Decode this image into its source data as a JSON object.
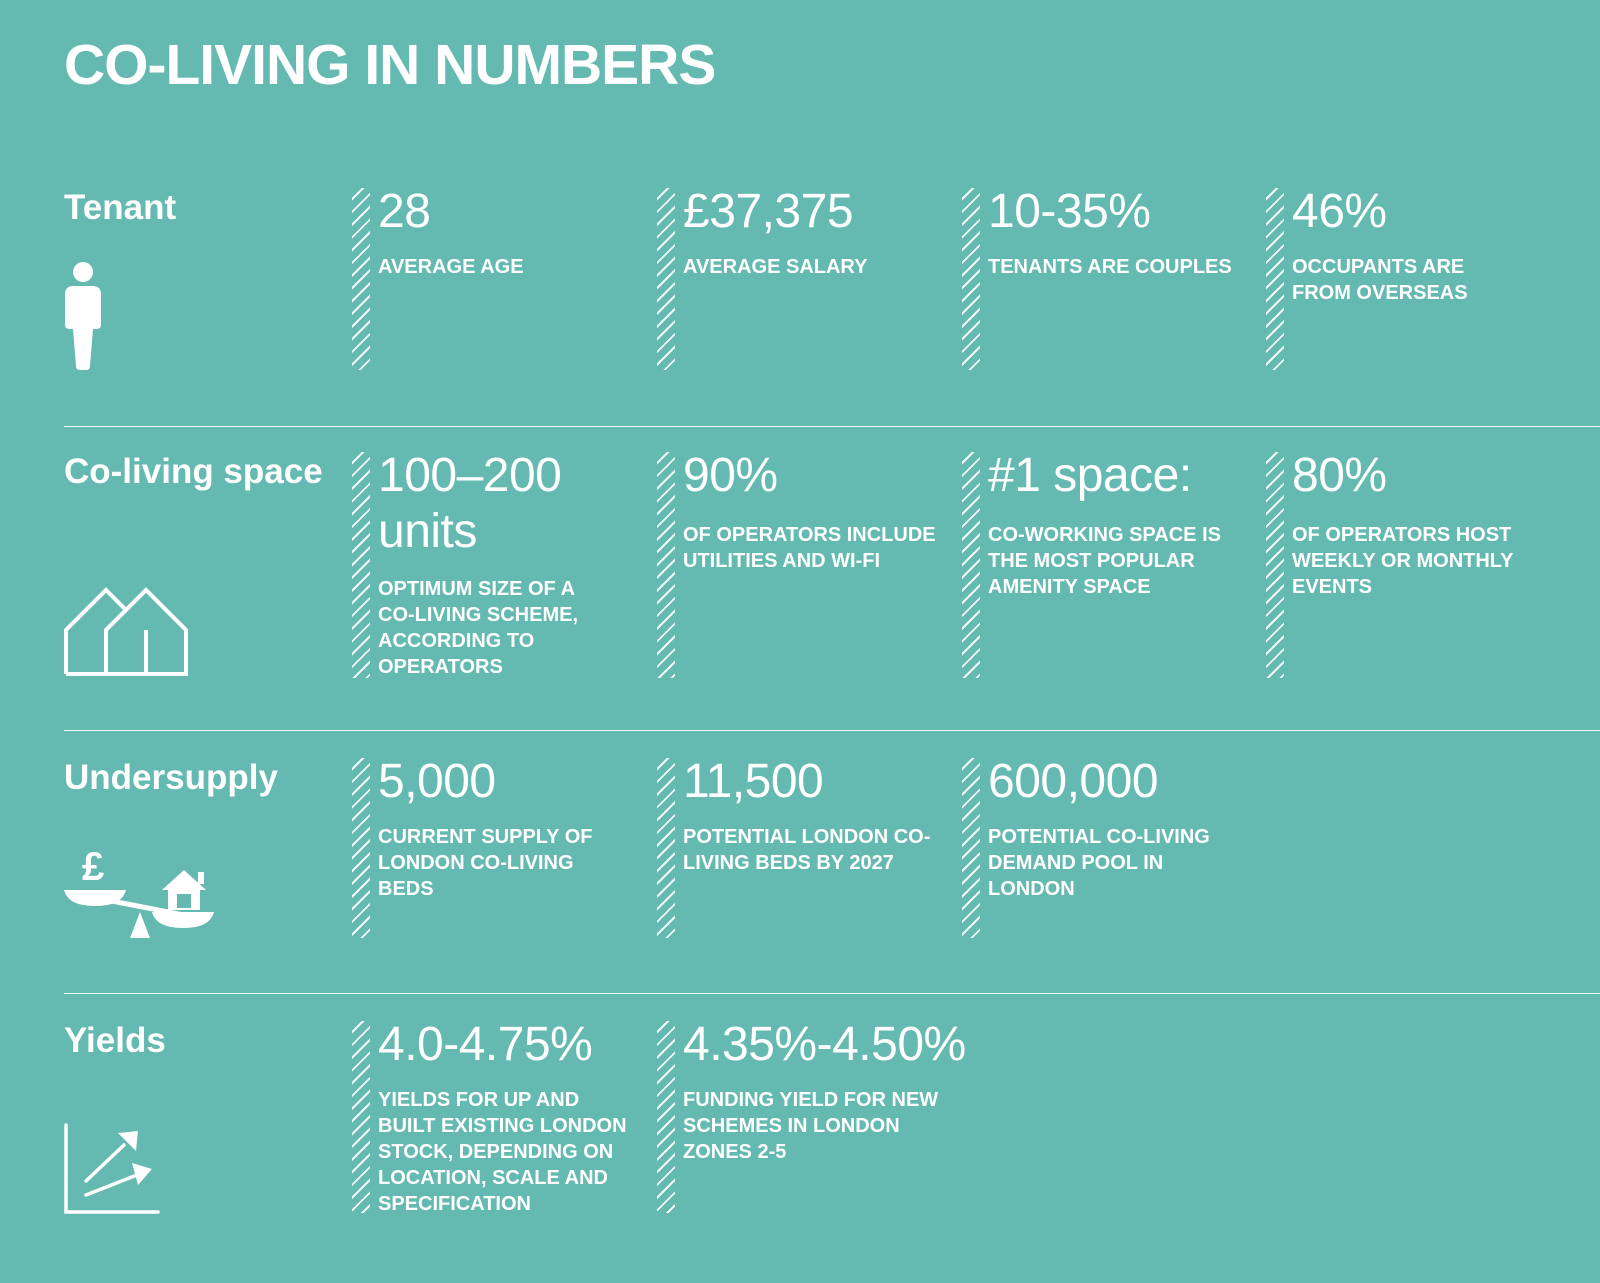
{
  "title": "CO-LIVING IN NUMBERS",
  "sections": [
    {
      "label": "Tenant",
      "icon": "person-icon",
      "stats": [
        {
          "value": "28",
          "desc": "AVERAGE AGE"
        },
        {
          "value": "£37,375",
          "desc": "AVERAGE SALARY"
        },
        {
          "value": "10-35%",
          "desc": "TENANTS ARE COUPLES"
        },
        {
          "value": "46%",
          "desc": "OCCUPANTS ARE FROM OVERSEAS"
        }
      ]
    },
    {
      "label": "Co-living space",
      "icon": "houses-icon",
      "stats": [
        {
          "value": "100–200 units",
          "desc": "OPTIMUM SIZE OF A CO-LIVING SCHEME, ACCORDING TO OPERATORS"
        },
        {
          "value": "90%",
          "desc": "OF OPERATORS INCLUDE UTILITIES AND WI-FI"
        },
        {
          "value": "#1 space:",
          "desc": "CO-WORKING SPACE IS THE MOST POPULAR AMENITY SPACE"
        },
        {
          "value": "80%",
          "desc": "OF OPERATORS HOST WEEKLY OR MONTHLY EVENTS"
        }
      ]
    },
    {
      "label": "Undersupply",
      "icon": "scales-icon",
      "stats": [
        {
          "value": "5,000",
          "desc": "CURRENT SUPPLY OF LONDON CO-LIVING BEDS"
        },
        {
          "value": "11,500",
          "desc": "POTENTIAL LONDON CO-LIVING BEDS BY 2027"
        },
        {
          "value": "600,000",
          "desc": "POTENTIAL CO-LIVING DEMAND POOL IN LONDON"
        }
      ]
    },
    {
      "label": "Yields",
      "icon": "growth-chart-icon",
      "stats": [
        {
          "value": "4.0-4.75%",
          "desc": "YIELDS FOR UP AND BUILT EXISTING LONDON STOCK, DEPENDING ON LOCATION, SCALE AND SPECIFICATION"
        },
        {
          "value": "4.35%-4.50%",
          "desc": "FUNDING YIELD FOR NEW SCHEMES IN LONDON ZONES 2-5"
        }
      ]
    }
  ]
}
